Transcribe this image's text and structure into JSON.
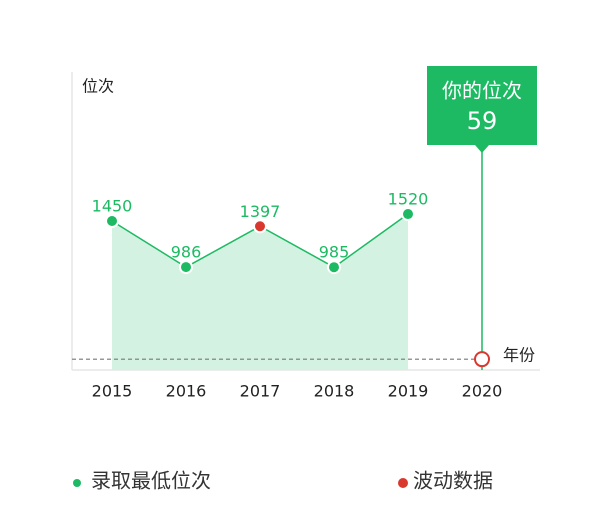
{
  "chart_data": {
    "type": "line",
    "y_label": "位次",
    "x_label": "年份",
    "categories": [
      "2015",
      "2016",
      "2017",
      "2018",
      "2019",
      "2020"
    ],
    "series": [
      {
        "name": "录取最低位次",
        "color": "#1dba63",
        "area_color": "#d3f2e1",
        "values": [
          1450,
          986,
          1397,
          985,
          1520,
          null
        ]
      }
    ],
    "fluctuation": {
      "name": "波动数据",
      "color": "#d9382f",
      "indices": [
        2
      ]
    },
    "your_rank": {
      "title": "你的位次",
      "value": 59,
      "category_index": 5
    },
    "ylim": [
      -50,
      2950
    ]
  }
}
